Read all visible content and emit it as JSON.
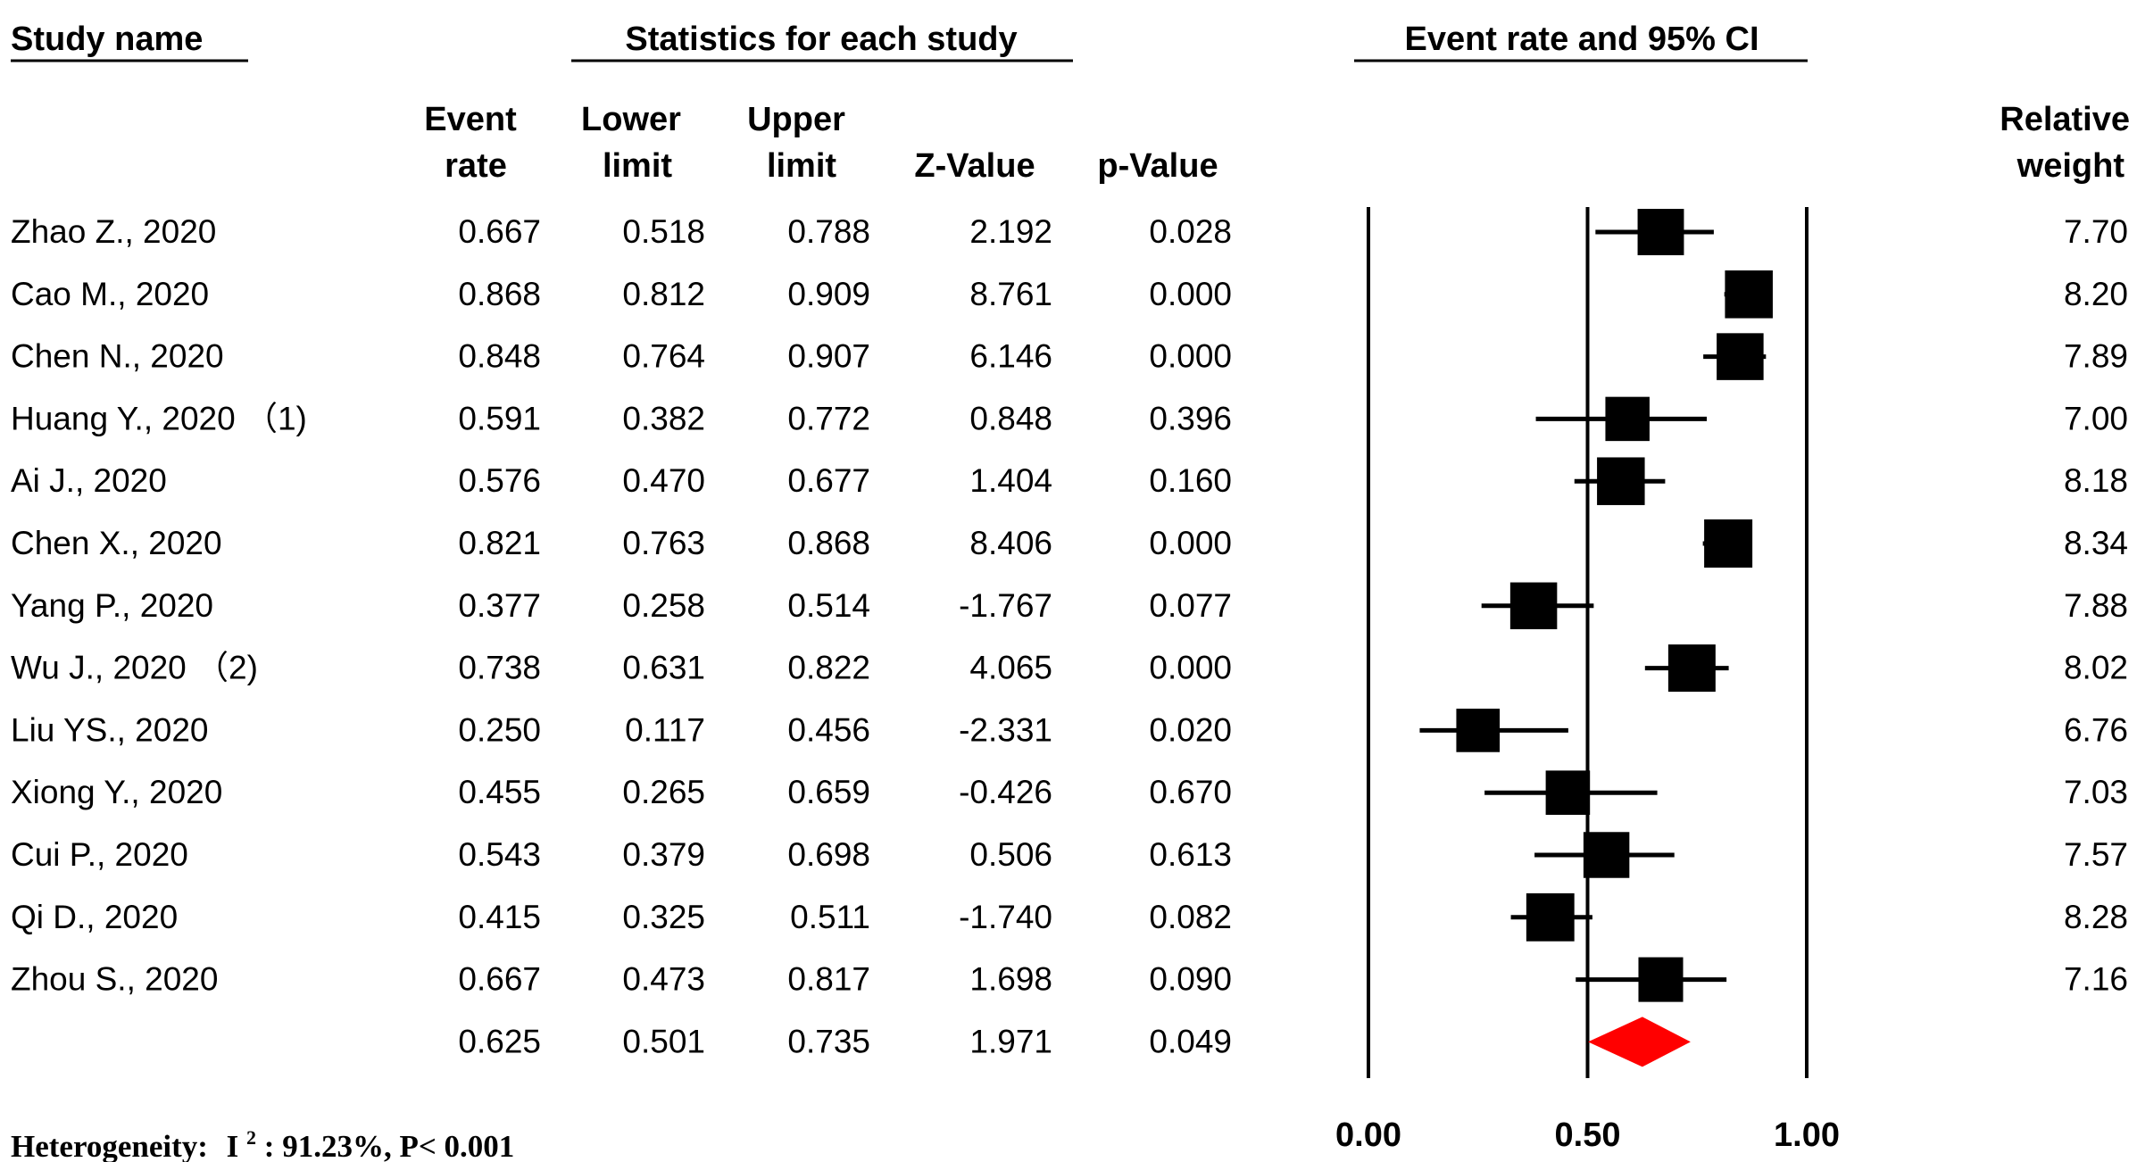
{
  "headers": {
    "study_name": "Study name",
    "statistics": "Statistics for each study",
    "plot": "Event rate and 95% CI",
    "event_rate": [
      "Event",
      "rate"
    ],
    "lower_limit": [
      "Lower",
      "limit"
    ],
    "upper_limit": [
      "Upper",
      "limit"
    ],
    "z_value": "Z-Value",
    "p_value": "p-Value",
    "relative_weight": [
      "Relative",
      "weight"
    ]
  },
  "heterogeneity": {
    "label": "Heterogeneity:",
    "i2_symbol": "I",
    "i2_sup": "2",
    "text": ": 91.23%, P< 0.001"
  },
  "axis_ticks": [
    "0.00",
    "0.50",
    "1.00"
  ],
  "chart_data": {
    "type": "forest",
    "xlim": [
      0,
      1
    ],
    "reference_line": 0.5,
    "colors": {
      "study": "#000000",
      "summary": "#ff0000"
    },
    "studies": [
      {
        "name": "Zhao Z., 2020",
        "rate": 0.667,
        "lower": 0.518,
        "upper": 0.788,
        "z": "2.192",
        "p": "0.028",
        "weight": "7.70"
      },
      {
        "name": "Cao M., 2020",
        "rate": 0.868,
        "lower": 0.812,
        "upper": 0.909,
        "z": "8.761",
        "p": "0.000",
        "weight": "8.20"
      },
      {
        "name": "Chen N., 2020",
        "rate": 0.848,
        "lower": 0.764,
        "upper": 0.907,
        "z": "6.146",
        "p": "0.000",
        "weight": "7.89"
      },
      {
        "name": "Huang Y., 2020 （1)",
        "rate": 0.591,
        "lower": 0.382,
        "upper": 0.772,
        "z": "0.848",
        "p": "0.396",
        "weight": "7.00"
      },
      {
        "name": "Ai J., 2020",
        "rate": 0.576,
        "lower": 0.47,
        "upper": 0.677,
        "z": "1.404",
        "p": "0.160",
        "weight": "8.18"
      },
      {
        "name": "Chen X., 2020",
        "rate": 0.821,
        "lower": 0.763,
        "upper": 0.868,
        "z": "8.406",
        "p": "0.000",
        "weight": "8.34"
      },
      {
        "name": "Yang P., 2020",
        "rate": 0.377,
        "lower": 0.258,
        "upper": 0.514,
        "z": "-1.767",
        "p": "0.077",
        "weight": "7.88"
      },
      {
        "name": "Wu J., 2020 （2)",
        "rate": 0.738,
        "lower": 0.631,
        "upper": 0.822,
        "z": "4.065",
        "p": "0.000",
        "weight": "8.02"
      },
      {
        "name": "Liu YS., 2020",
        "rate": 0.25,
        "lower": 0.117,
        "upper": 0.456,
        "z": "-2.331",
        "p": "0.020",
        "weight": "6.76"
      },
      {
        "name": "Xiong Y., 2020",
        "rate": 0.455,
        "lower": 0.265,
        "upper": 0.659,
        "z": "-0.426",
        "p": "0.670",
        "weight": "7.03"
      },
      {
        "name": "Cui P., 2020",
        "rate": 0.543,
        "lower": 0.379,
        "upper": 0.698,
        "z": "0.506",
        "p": "0.613",
        "weight": "7.57"
      },
      {
        "name": "Qi D., 2020",
        "rate": 0.415,
        "lower": 0.325,
        "upper": 0.511,
        "z": "-1.740",
        "p": "0.082",
        "weight": "8.28"
      },
      {
        "name": "Zhou S., 2020",
        "rate": 0.667,
        "lower": 0.473,
        "upper": 0.817,
        "z": "1.698",
        "p": "0.090",
        "weight": "7.16"
      }
    ],
    "summary": {
      "rate": 0.625,
      "lower": 0.501,
      "upper": 0.735,
      "z": "1.971",
      "p": "0.049"
    }
  }
}
